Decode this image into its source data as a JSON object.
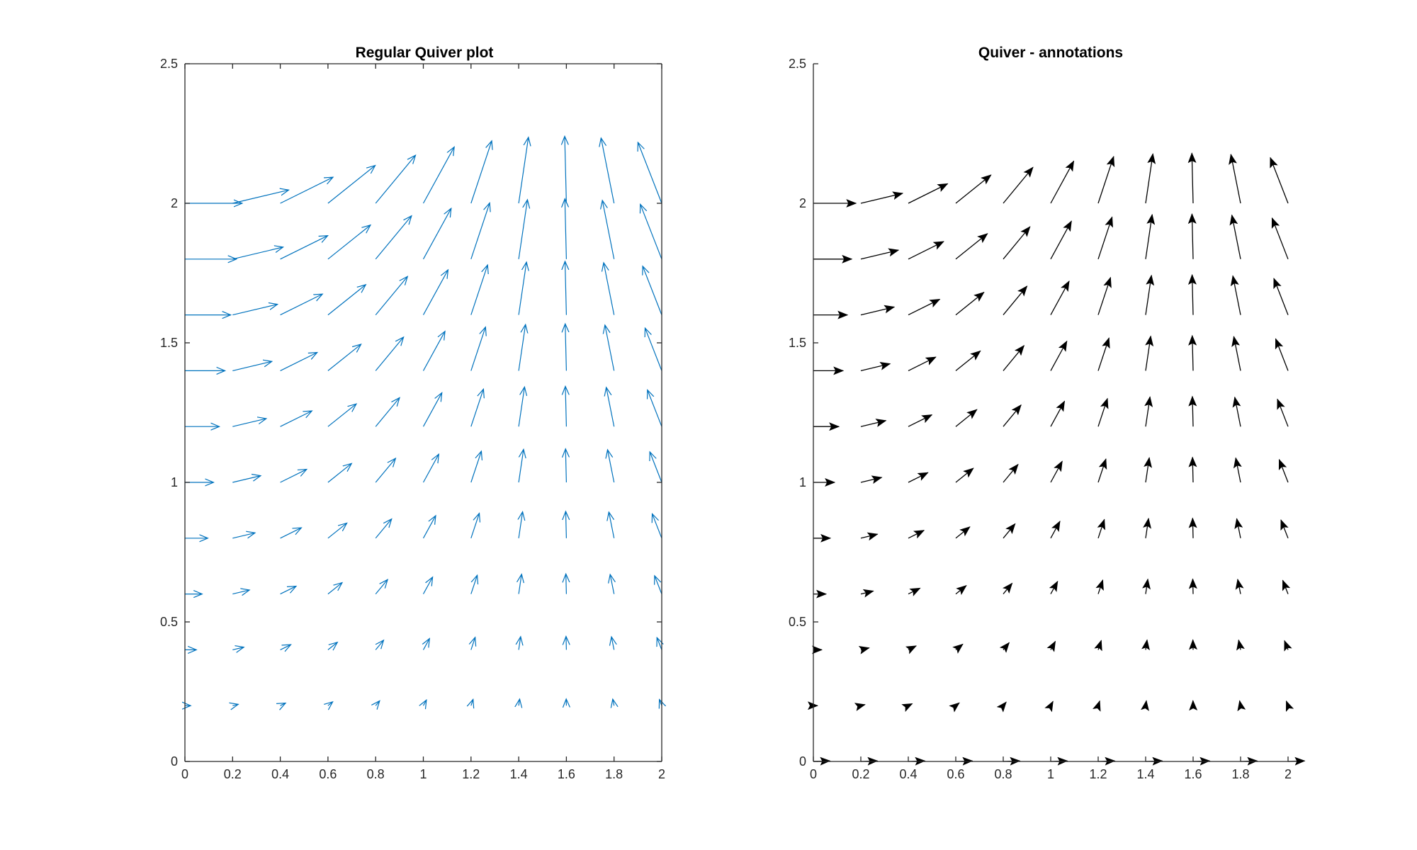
{
  "figure": {
    "background": "#ffffff"
  },
  "chart_data": [
    {
      "type": "quiver",
      "title": "Regular Quiver plot",
      "xlabel": "",
      "ylabel": "",
      "xlim": [
        0,
        2
      ],
      "ylim": [
        0,
        2.5
      ],
      "xticks": [
        0,
        0.2,
        0.4,
        0.6,
        0.8,
        1,
        1.2,
        1.4,
        1.6,
        1.8,
        2
      ],
      "xtick_labels": [
        "0",
        "0.2",
        "0.4",
        "0.6",
        "0.8",
        "1",
        "1.2",
        "1.4",
        "1.6",
        "1.8",
        "2"
      ],
      "yticks": [
        0,
        0.5,
        1,
        1.5,
        2,
        2.5
      ],
      "ytick_labels": [
        "0",
        "0.5",
        "1",
        "1.5",
        "2",
        "2.5"
      ],
      "box": true,
      "grid": false,
      "arrow_style": "open-head",
      "arrow_color": "#0072BD",
      "grid_x": [
        0,
        0.2,
        0.4,
        0.6,
        0.8,
        1,
        1.2,
        1.4,
        1.6,
        1.8,
        2
      ],
      "grid_y": [
        0.2,
        0.4,
        0.6,
        0.8,
        1,
        1.2,
        1.4,
        1.6,
        1.8,
        2
      ],
      "vector_field": {
        "u": "cos(x) * y",
        "v": "sin(x) * y",
        "scale": 0.12
      }
    },
    {
      "type": "quiver",
      "title": "Quiver - annotations",
      "xlabel": "",
      "ylabel": "",
      "xlim": [
        0,
        2
      ],
      "ylim": [
        0,
        2.5
      ],
      "xticks": [
        0,
        0.2,
        0.4,
        0.6,
        0.8,
        1,
        1.2,
        1.4,
        1.6,
        1.8,
        2
      ],
      "xtick_labels": [
        "0",
        "0.2",
        "0.4",
        "0.6",
        "0.8",
        "1",
        "1.2",
        "1.4",
        "1.6",
        "1.8",
        "2"
      ],
      "yticks": [
        0,
        0.5,
        1,
        1.5,
        2,
        2.5
      ],
      "ytick_labels": [
        "0",
        "0.5",
        "1",
        "1.5",
        "2",
        "2.5"
      ],
      "box": false,
      "grid": false,
      "arrow_style": "filled-head",
      "arrow_color": "#000000",
      "grid_x": [
        0,
        0.2,
        0.4,
        0.6,
        0.8,
        1,
        1.2,
        1.4,
        1.6,
        1.8,
        2
      ],
      "grid_y": [
        0,
        0.2,
        0.4,
        0.6,
        0.8,
        1,
        1.2,
        1.4,
        1.6,
        1.8,
        2
      ],
      "vector_field": {
        "u": "cos(x) * y",
        "v": "sin(x) * y",
        "scale": 0.09
      }
    }
  ]
}
